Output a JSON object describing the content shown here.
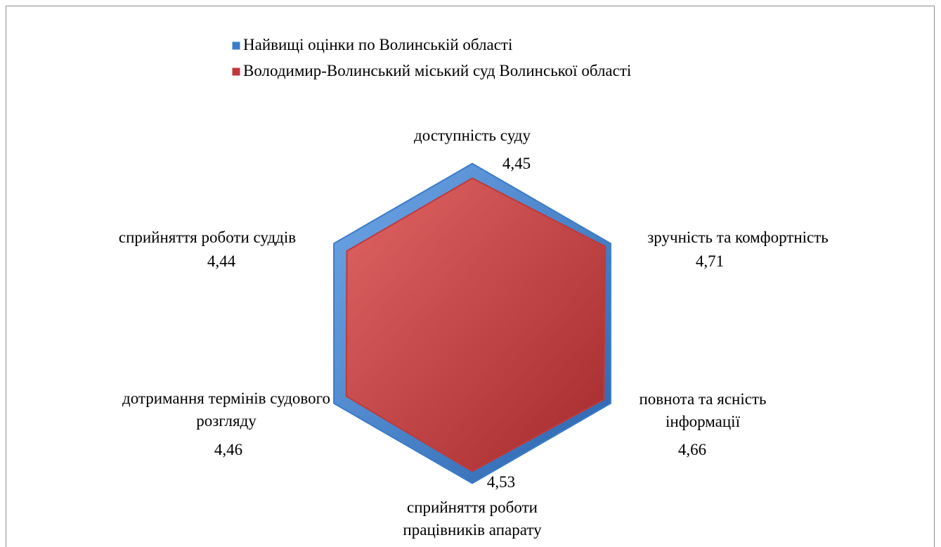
{
  "chart_data": {
    "type": "radar",
    "categories": [
      "доступність суду",
      "зручність та комфортність",
      "повнота та ясність інформації",
      "сприйняття роботи працівників апарату",
      "дотримання термінів судового розгляду",
      "сприйняття роботи суддів"
    ],
    "series": [
      {
        "name": "Найвищі оцінки по Волинській області",
        "color": "#3a7cc9",
        "values": [
          4.9,
          4.9,
          4.9,
          4.9,
          4.9,
          4.9
        ]
      },
      {
        "name": "Володимир-Волинський міський суд Волинської області",
        "color": "#c0393b",
        "values": [
          4.45,
          4.71,
          4.66,
          4.53,
          4.46,
          4.44
        ],
        "value_labels": [
          "4,45",
          "4,71",
          "4,66",
          "4,53",
          "4,46",
          "4,44"
        ]
      }
    ],
    "rlim": [
      0,
      5
    ],
    "legend": "top"
  }
}
